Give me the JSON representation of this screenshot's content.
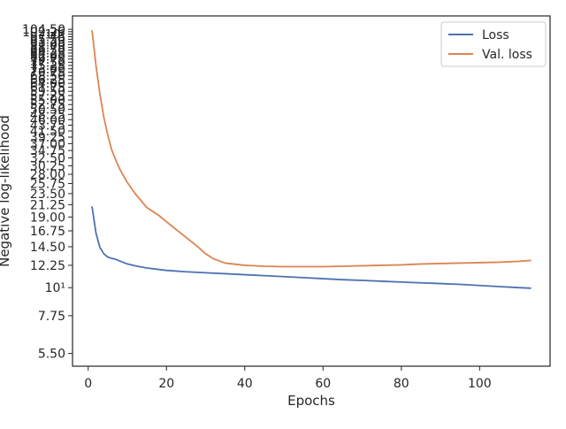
{
  "chart_data": {
    "type": "line",
    "title": "",
    "xlabel": "Epochs",
    "ylabel": "Negative log-likelihood",
    "xlim": [
      -4,
      118
    ],
    "ylim": [
      4.9,
      118
    ],
    "yscale": "log",
    "x_ticks": [
      "0",
      "20",
      "40",
      "60",
      "80",
      "100"
    ],
    "y_ticks": [
      {
        "value": 5.5,
        "label": "5.50"
      },
      {
        "value": 7.75,
        "label": "7.75"
      },
      {
        "value": 10,
        "label": "10¹"
      },
      {
        "value": 12.25,
        "label": "12.25"
      },
      {
        "value": 14.5,
        "label": "14.50"
      },
      {
        "value": 16.75,
        "label": "16.75"
      },
      {
        "value": 19.0,
        "label": "19.00"
      },
      {
        "value": 21.25,
        "label": "21.25"
      },
      {
        "value": 23.5,
        "label": "23.50"
      },
      {
        "value": 25.75,
        "label": "25.75"
      },
      {
        "value": 28.0,
        "label": "28.00"
      },
      {
        "value": 30.25,
        "label": "30.25"
      },
      {
        "value": 32.5,
        "label": "32.50"
      },
      {
        "value": 34.75,
        "label": "34.75"
      },
      {
        "value": 37.0,
        "label": "37.00"
      },
      {
        "value": 39.25,
        "label": "39.25"
      },
      {
        "value": 41.5,
        "label": "41.50"
      },
      {
        "value": 43.75,
        "label": "43.75"
      },
      {
        "value": 46.0,
        "label": "46.00"
      },
      {
        "value": 48.25,
        "label": "48.25"
      },
      {
        "value": 50.5,
        "label": "50.50"
      },
      {
        "value": 52.75,
        "label": "52.75"
      },
      {
        "value": 55.0,
        "label": "55.00"
      },
      {
        "value": 57.25,
        "label": "57.25"
      },
      {
        "value": 59.5,
        "label": "59.50"
      },
      {
        "value": 61.75,
        "label": "61.75"
      },
      {
        "value": 64.0,
        "label": "64.00"
      },
      {
        "value": 66.25,
        "label": "66.25"
      },
      {
        "value": 68.5,
        "label": "68.50"
      },
      {
        "value": 70.75,
        "label": "70.75"
      },
      {
        "value": 73.0,
        "label": "73.00"
      },
      {
        "value": 75.25,
        "label": "75.25"
      },
      {
        "value": 77.5,
        "label": "77.50"
      },
      {
        "value": 79.75,
        "label": "79.75"
      },
      {
        "value": 82.0,
        "label": "82.00"
      },
      {
        "value": 84.25,
        "label": "84.25"
      },
      {
        "value": 86.5,
        "label": "86.50"
      },
      {
        "value": 88.75,
        "label": "88.75"
      },
      {
        "value": 91.0,
        "label": "91.00"
      },
      {
        "value": 93.25,
        "label": "93.25"
      },
      {
        "value": 95.5,
        "label": "95.50"
      },
      {
        "value": 97.75,
        "label": "97.75"
      },
      {
        "value": 100,
        "label": "10²"
      },
      {
        "value": 102.25,
        "label": "102.25"
      },
      {
        "value": 104.5,
        "label": "104.50"
      }
    ],
    "grid": false,
    "legend_position": "top-right",
    "series": [
      {
        "name": "Loss",
        "color": "#4c72b0",
        "x": [
          1,
          2,
          3,
          4,
          5,
          6,
          7,
          8,
          10,
          12,
          15,
          20,
          25,
          30,
          35,
          40,
          45,
          50,
          55,
          60,
          65,
          70,
          75,
          80,
          85,
          90,
          95,
          100,
          105,
          110,
          113
        ],
        "y": [
          20.8,
          16.4,
          14.4,
          13.6,
          13.2,
          13.05,
          12.95,
          12.75,
          12.4,
          12.2,
          11.95,
          11.7,
          11.55,
          11.45,
          11.35,
          11.25,
          11.15,
          11.05,
          10.95,
          10.85,
          10.75,
          10.68,
          10.6,
          10.52,
          10.45,
          10.38,
          10.3,
          10.2,
          10.1,
          10.0,
          9.95
        ]
      },
      {
        "name": "Val. loss",
        "color": "#dd8452",
        "x": [
          1,
          2,
          3,
          4,
          5,
          6,
          7,
          8,
          10,
          12,
          15,
          18,
          20,
          25,
          28,
          30,
          32,
          35,
          40,
          45,
          50,
          55,
          60,
          65,
          70,
          75,
          80,
          85,
          90,
          95,
          100,
          105,
          110,
          113
        ],
        "y": [
          103,
          75,
          58,
          47,
          40,
          35,
          32,
          29.5,
          26,
          23.5,
          20.7,
          19.3,
          18.2,
          15.8,
          14.5,
          13.6,
          13.0,
          12.5,
          12.25,
          12.15,
          12.1,
          12.1,
          12.1,
          12.15,
          12.2,
          12.25,
          12.3,
          12.4,
          12.45,
          12.5,
          12.55,
          12.6,
          12.7,
          12.8
        ]
      }
    ]
  }
}
